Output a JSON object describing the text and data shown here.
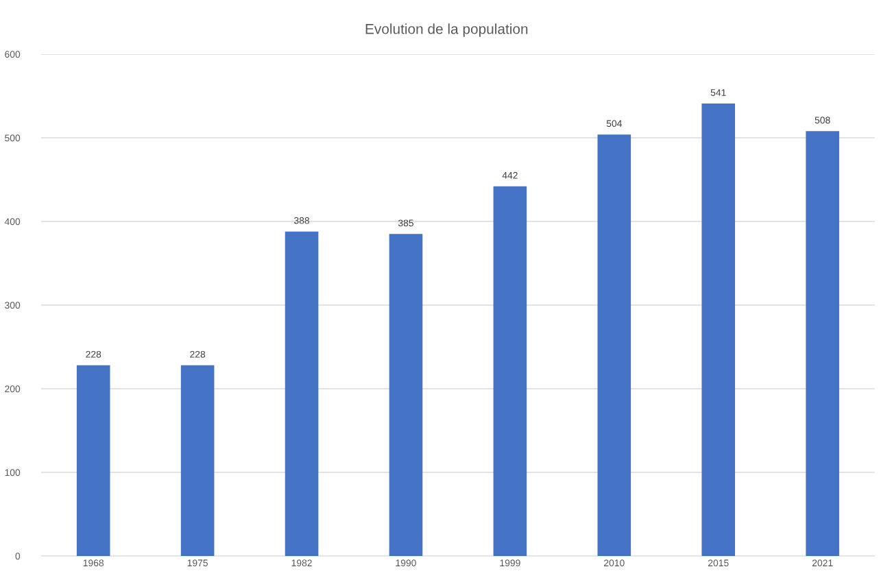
{
  "chart_data": {
    "type": "bar",
    "title": "Evolution de la population",
    "categories": [
      "1968",
      "1975",
      "1982",
      "1990",
      "1999",
      "2010",
      "2015",
      "2021"
    ],
    "values": [
      228,
      228,
      388,
      385,
      442,
      504,
      541,
      508
    ],
    "color": "#4472c4",
    "ylim": [
      0,
      600
    ],
    "yticks": [
      0,
      100,
      200,
      300,
      400,
      500,
      600
    ],
    "grid": "y",
    "data_labels": true
  }
}
